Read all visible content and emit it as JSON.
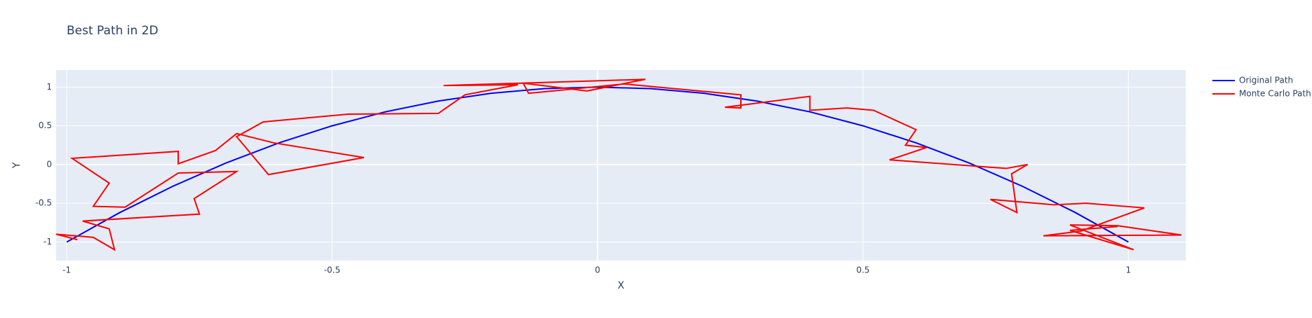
{
  "chart_data": {
    "type": "line",
    "title": "Best Path in 2D",
    "x_label": "X",
    "y_label": "Y",
    "xlim": [
      -1.02,
      1.108
    ],
    "ylim": [
      -1.24,
      1.22
    ],
    "xticks": [
      -1,
      -0.5,
      0,
      0.5,
      1
    ],
    "yticks": [
      -1,
      -0.5,
      0,
      0.5,
      1
    ],
    "grid": true,
    "legend": "right",
    "series": [
      {
        "name": "Original Path",
        "color": "#0000ff",
        "x": [
          -1,
          -0.9,
          -0.8,
          -0.7,
          -0.6,
          -0.5,
          -0.4,
          -0.3,
          -0.2,
          -0.1,
          0,
          0.1,
          0.2,
          0.3,
          0.4,
          0.5,
          0.6,
          0.7,
          0.8,
          0.9,
          1
        ],
        "y": [
          -1,
          -0.62,
          -0.28,
          0.02,
          0.28,
          0.5,
          0.68,
          0.82,
          0.92,
          0.98,
          1,
          0.98,
          0.92,
          0.82,
          0.68,
          0.5,
          0.28,
          0.02,
          -0.28,
          -0.62,
          -1
        ]
      },
      {
        "name": "Monte Carlo Path",
        "color": "#ff0000",
        "x": [
          -0.98,
          -1.02,
          -0.95,
          -0.91,
          -0.92,
          -0.97,
          -0.75,
          -0.76,
          -0.68,
          -0.79,
          -0.89,
          -0.95,
          -0.92,
          -0.99,
          -0.79,
          -0.79,
          -0.72,
          -0.68,
          -0.61,
          -0.44,
          -0.62,
          -0.68,
          -0.63,
          -0.47,
          -0.3,
          -0.25,
          -0.15,
          -0.29,
          0.09,
          -0.02,
          -0.14,
          -0.13,
          0.05,
          0.27,
          0.27,
          0.24,
          0.4,
          0.4,
          0.47,
          0.52,
          0.6,
          0.58,
          0.62,
          0.55,
          0.77,
          0.81,
          0.78,
          0.79,
          0.74,
          0.86,
          0.92,
          1.03,
          0.91,
          0.84,
          1.1,
          0.98,
          0.89,
          1.01,
          0.89,
          0.98
        ],
        "y": [
          -0.97,
          -0.9,
          -0.94,
          -1.1,
          -0.83,
          -0.73,
          -0.64,
          -0.44,
          -0.09,
          -0.11,
          -0.55,
          -0.54,
          -0.24,
          0.08,
          0.17,
          0.01,
          0.18,
          0.4,
          0.28,
          0.09,
          -0.13,
          0.36,
          0.55,
          0.65,
          0.66,
          0.9,
          1.03,
          1.02,
          1.1,
          0.95,
          1.05,
          0.92,
          1.04,
          0.9,
          0.73,
          0.74,
          0.88,
          0.7,
          0.73,
          0.7,
          0.45,
          0.25,
          0.22,
          0.06,
          -0.05,
          0,
          -0.12,
          -0.62,
          -0.45,
          -0.52,
          -0.5,
          -0.56,
          -0.86,
          -0.92,
          -0.91,
          -0.79,
          -0.78,
          -1.1,
          -0.85,
          -0.8
        ]
      }
    ]
  }
}
